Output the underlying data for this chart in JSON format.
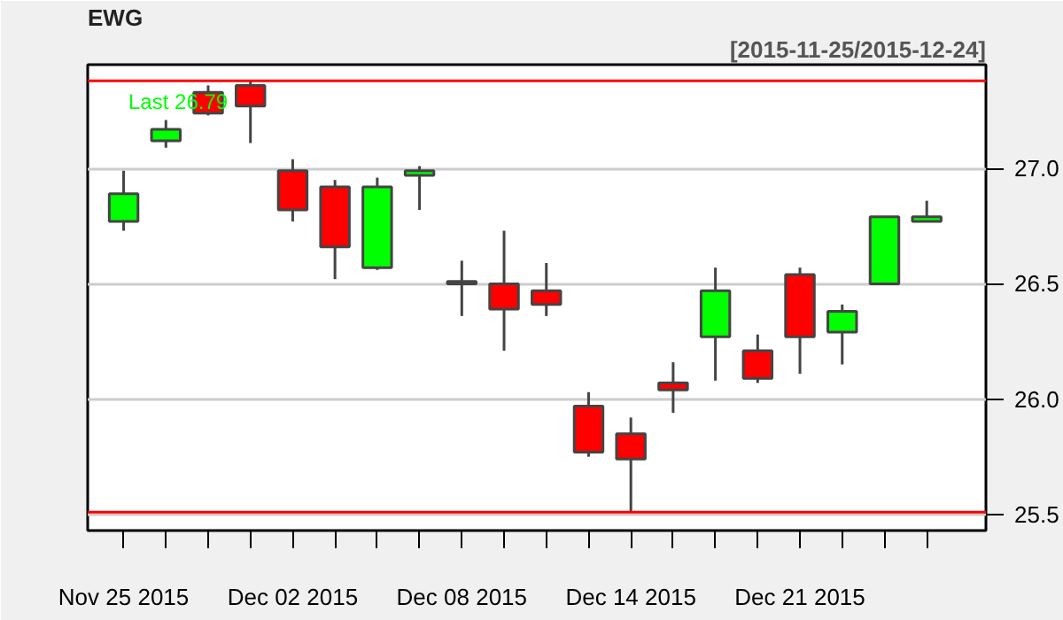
{
  "chart_data": {
    "type": "candlestick",
    "title": "EWG",
    "subtitle": "[2015-11-25/2015-12-24]",
    "categories": [
      "Nov 25 2015",
      null,
      null,
      null,
      "Dec 02 2015",
      null,
      null,
      null,
      "Dec 08 2015",
      null,
      null,
      null,
      "Dec 14 2015",
      null,
      null,
      null,
      "Dec 21 2015",
      null,
      null,
      null
    ],
    "ohlc": [
      [
        26.77,
        26.99,
        26.73,
        26.89
      ],
      [
        27.12,
        27.21,
        27.09,
        27.17
      ],
      [
        27.33,
        27.36,
        27.23,
        27.24
      ],
      [
        27.36,
        27.38,
        27.11,
        27.27
      ],
      [
        26.99,
        27.04,
        26.77,
        26.82
      ],
      [
        26.92,
        26.95,
        26.52,
        26.66
      ],
      [
        26.57,
        26.96,
        26.56,
        26.92
      ],
      [
        26.97,
        27.01,
        26.82,
        26.99
      ],
      [
        26.5,
        26.6,
        26.36,
        26.51
      ],
      [
        26.5,
        26.73,
        26.21,
        26.39
      ],
      [
        26.47,
        26.59,
        26.36,
        26.41
      ],
      [
        25.97,
        26.03,
        25.75,
        25.77
      ],
      [
        25.85,
        25.92,
        25.51,
        25.74
      ],
      [
        26.07,
        26.16,
        25.94,
        26.04
      ],
      [
        26.27,
        26.57,
        26.08,
        26.47
      ],
      [
        26.21,
        26.28,
        26.07,
        26.09
      ],
      [
        26.54,
        26.57,
        26.11,
        26.27
      ],
      [
        26.29,
        26.41,
        26.15,
        26.38
      ],
      [
        26.5,
        26.79,
        26.5,
        26.79
      ],
      [
        26.77,
        26.86,
        26.77,
        26.79
      ]
    ],
    "colors": [
      "#00ff00",
      "#00ff00",
      "#ff0000",
      "#ff0000",
      "#ff0000",
      "#ff0000",
      "#00ff00",
      "#00ff00",
      "#00ff00",
      "#ff0000",
      "#ff0000",
      "#ff0000",
      "#ff0000",
      "#ff0000",
      "#00ff00",
      "#ff0000",
      "#ff0000",
      "#00ff00",
      "#00ff00",
      "#00ff00"
    ],
    "ylim": [
      25.43,
      27.45
    ],
    "yticks": [
      {
        "value": 25.5,
        "label": "25.5"
      },
      {
        "value": 26.0,
        "label": "26.0"
      },
      {
        "value": 26.5,
        "label": "26.5"
      },
      {
        "value": 27.0,
        "label": "27.0"
      }
    ],
    "grid": "y",
    "ref_lines": [
      {
        "axis": "y",
        "value": 27.38,
        "color": "#ff0000"
      },
      {
        "axis": "y",
        "value": 25.51,
        "color": "#ff0000"
      }
    ],
    "annotations": [
      "Last 26.79"
    ]
  }
}
